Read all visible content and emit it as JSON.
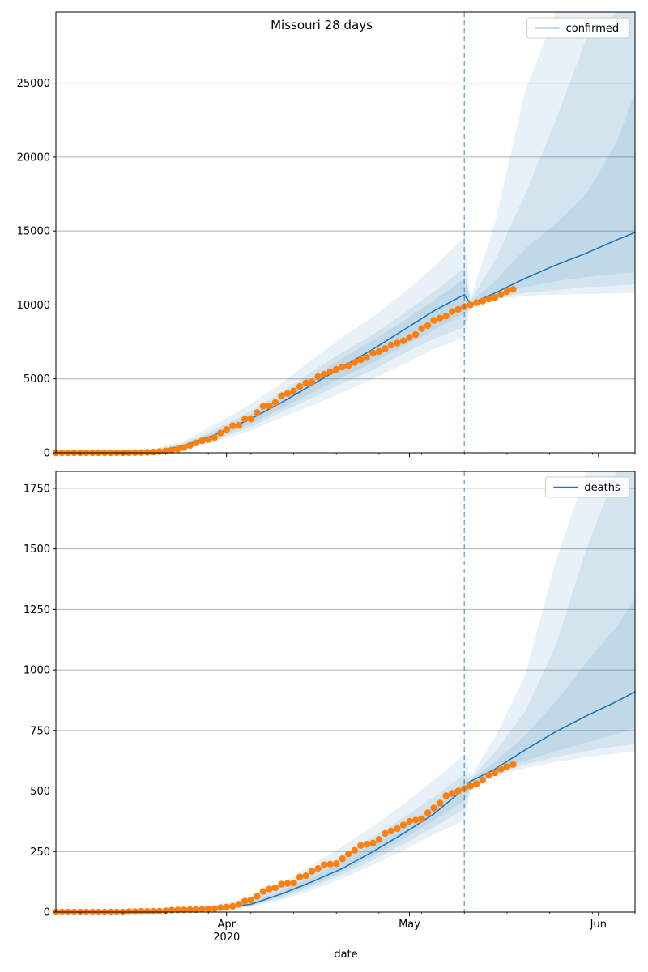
{
  "title": "Missouri 28 days",
  "xlabel": "date",
  "x_ticks": [
    {
      "date": "2020-04-01",
      "label": "Apr",
      "sublabel": "2020"
    },
    {
      "date": "2020-05-01",
      "label": "May",
      "sublabel": ""
    },
    {
      "date": "2020-06-01",
      "label": "Jun",
      "sublabel": ""
    }
  ],
  "x_range": [
    "2020-03-04",
    "2020-06-07"
  ],
  "forecast_start": "2020-05-10",
  "colors": {
    "line": "#1f77b4",
    "band": "#1f77b4",
    "points": "#ff7f0e",
    "grid": "#b0b0b0"
  },
  "chart_data": [
    {
      "type": "line",
      "legend": "confirmed",
      "legend_position": "upper right",
      "grid": "horizontal",
      "ylim": [
        0,
        29800
      ],
      "yticks": [
        0,
        5000,
        10000,
        15000,
        20000,
        25000
      ],
      "fit_line": {
        "x": [
          "2020-03-04",
          "2020-03-15",
          "2020-03-21",
          "2020-03-25",
          "2020-03-30",
          "2020-04-05",
          "2020-04-10",
          "2020-04-15",
          "2020-04-20",
          "2020-04-25",
          "2020-04-30",
          "2020-05-05",
          "2020-05-10",
          "2020-05-11",
          "2020-05-15",
          "2020-05-20",
          "2020-05-25",
          "2020-05-30",
          "2020-06-04",
          "2020-06-07"
        ],
        "y": [
          0,
          20,
          150,
          480,
          1200,
          2300,
          3400,
          4600,
          5800,
          7000,
          8300,
          9600,
          10700,
          10050,
          10800,
          11800,
          12700,
          13500,
          14400,
          14900
        ]
      },
      "bands": [
        {
          "label": "outer",
          "x": [
            "2020-03-04",
            "2020-03-20",
            "2020-03-25",
            "2020-03-30",
            "2020-04-05",
            "2020-04-10",
            "2020-04-15",
            "2020-04-20",
            "2020-04-25",
            "2020-04-30",
            "2020-05-05",
            "2020-05-10",
            "2020-05-11",
            "2020-05-15",
            "2020-05-20",
            "2020-05-25",
            "2020-06-07"
          ],
          "lower": [
            0,
            60,
            260,
            750,
            1500,
            2400,
            3200,
            4100,
            5000,
            6000,
            7000,
            7800,
            10100,
            10400,
            10600,
            10700,
            10800
          ],
          "upper": [
            0,
            250,
            800,
            1900,
            3300,
            4700,
            6300,
            7800,
            9200,
            10800,
            12600,
            14600,
            10400,
            15500,
            24500,
            29800,
            29800
          ]
        },
        {
          "label": "middle",
          "x": [
            "2020-03-04",
            "2020-03-20",
            "2020-03-25",
            "2020-03-30",
            "2020-04-05",
            "2020-04-10",
            "2020-04-15",
            "2020-04-20",
            "2020-04-25",
            "2020-04-30",
            "2020-05-05",
            "2020-05-10",
            "2020-05-11",
            "2020-05-15",
            "2020-05-20",
            "2020-05-25",
            "2020-05-30",
            "2020-06-04",
            "2020-06-07"
          ],
          "lower": [
            0,
            80,
            330,
            880,
            1750,
            2750,
            3700,
            4700,
            5600,
            6700,
            7700,
            8500,
            10100,
            10500,
            10800,
            11000,
            11200,
            11300,
            11400
          ],
          "upper": [
            0,
            190,
            640,
            1550,
            2850,
            4100,
            5500,
            6800,
            8000,
            9400,
            10900,
            12500,
            10300,
            13000,
            17500,
            22500,
            28000,
            29800,
            29800
          ]
        },
        {
          "label": "inner",
          "x": [
            "2020-03-04",
            "2020-03-20",
            "2020-03-25",
            "2020-03-30",
            "2020-04-05",
            "2020-04-10",
            "2020-04-15",
            "2020-04-20",
            "2020-04-25",
            "2020-04-30",
            "2020-05-05",
            "2020-05-10",
            "2020-05-11",
            "2020-05-15",
            "2020-05-20",
            "2020-05-25",
            "2020-05-30",
            "2020-06-04",
            "2020-06-07"
          ],
          "lower": [
            0,
            100,
            380,
            980,
            1950,
            3000,
            4050,
            5100,
            6100,
            7200,
            8300,
            9400,
            10100,
            10700,
            11200,
            11600,
            11900,
            12100,
            12200
          ],
          "upper": [
            0,
            160,
            560,
            1400,
            2600,
            3750,
            5050,
            6400,
            7600,
            8900,
            10300,
            11800,
            10200,
            11600,
            13800,
            15500,
            17500,
            21000,
            24400
          ]
        }
      ],
      "observed": {
        "x": [
          "2020-03-04",
          "2020-03-05",
          "2020-03-06",
          "2020-03-07",
          "2020-03-08",
          "2020-03-09",
          "2020-03-10",
          "2020-03-11",
          "2020-03-12",
          "2020-03-13",
          "2020-03-14",
          "2020-03-15",
          "2020-03-16",
          "2020-03-17",
          "2020-03-18",
          "2020-03-19",
          "2020-03-20",
          "2020-03-21",
          "2020-03-22",
          "2020-03-23",
          "2020-03-24",
          "2020-03-25",
          "2020-03-26",
          "2020-03-27",
          "2020-03-28",
          "2020-03-29",
          "2020-03-30",
          "2020-03-31",
          "2020-04-01",
          "2020-04-02",
          "2020-04-03",
          "2020-04-04",
          "2020-04-05",
          "2020-04-06",
          "2020-04-07",
          "2020-04-08",
          "2020-04-09",
          "2020-04-10",
          "2020-04-11",
          "2020-04-12",
          "2020-04-13",
          "2020-04-14",
          "2020-04-15",
          "2020-04-16",
          "2020-04-17",
          "2020-04-18",
          "2020-04-19",
          "2020-04-20",
          "2020-04-21",
          "2020-04-22",
          "2020-04-23",
          "2020-04-24",
          "2020-04-25",
          "2020-04-26",
          "2020-04-27",
          "2020-04-28",
          "2020-04-29",
          "2020-04-30",
          "2020-05-01",
          "2020-05-02",
          "2020-05-03",
          "2020-05-04",
          "2020-05-05",
          "2020-05-06",
          "2020-05-07",
          "2020-05-08",
          "2020-05-09",
          "2020-05-10",
          "2020-05-11",
          "2020-05-12",
          "2020-05-13",
          "2020-05-14",
          "2020-05-15",
          "2020-05-16",
          "2020-05-17",
          "2020-05-18"
        ],
        "y": [
          0,
          0,
          0,
          0,
          1,
          1,
          1,
          1,
          2,
          2,
          4,
          5,
          8,
          12,
          15,
          28,
          50,
          80,
          120,
          180,
          250,
          350,
          500,
          670,
          810,
          900,
          1030,
          1330,
          1580,
          1830,
          1850,
          2280,
          2300,
          2720,
          3150,
          3170,
          3400,
          3850,
          4010,
          4180,
          4480,
          4730,
          4790,
          5150,
          5310,
          5480,
          5650,
          5800,
          5900,
          6100,
          6290,
          6440,
          6740,
          6850,
          7040,
          7280,
          7430,
          7570,
          7800,
          8000,
          8400,
          8600,
          8950,
          9110,
          9250,
          9550,
          9700,
          9880,
          10000,
          10150,
          10260,
          10400,
          10500,
          10700,
          10900,
          11050
        ]
      }
    },
    {
      "type": "line",
      "legend": "deaths",
      "legend_position": "upper right",
      "grid": "horizontal",
      "ylim": [
        0,
        1820
      ],
      "yticks": [
        0,
        250,
        500,
        750,
        1000,
        1250,
        1500,
        1750
      ],
      "fit_line": {
        "x": [
          "2020-03-04",
          "2020-03-20",
          "2020-03-25",
          "2020-03-30",
          "2020-04-05",
          "2020-04-10",
          "2020-04-15",
          "2020-04-20",
          "2020-04-25",
          "2020-04-30",
          "2020-05-05",
          "2020-05-10",
          "2020-05-11",
          "2020-05-15",
          "2020-05-20",
          "2020-05-25",
          "2020-05-30",
          "2020-06-04",
          "2020-06-07"
        ],
        "y": [
          0,
          3,
          8,
          15,
          32,
          75,
          125,
          180,
          250,
          325,
          405,
          510,
          540,
          590,
          670,
          745,
          810,
          870,
          910
        ]
      },
      "bands": [
        {
          "label": "outer",
          "x": [
            "2020-03-04",
            "2020-03-20",
            "2020-03-25",
            "2020-03-30",
            "2020-04-05",
            "2020-04-10",
            "2020-04-15",
            "2020-04-20",
            "2020-04-25",
            "2020-04-30",
            "2020-05-05",
            "2020-05-10",
            "2020-05-11",
            "2020-05-15",
            "2020-05-20",
            "2020-05-25",
            "2020-05-30",
            "2020-06-04",
            "2020-06-07"
          ],
          "lower": [
            0,
            1,
            4,
            9,
            22,
            50,
            90,
            140,
            195,
            255,
            320,
            380,
            505,
            560,
            595,
            620,
            640,
            655,
            665
          ],
          "upper": [
            0,
            6,
            14,
            28,
            65,
            120,
            195,
            270,
            355,
            445,
            545,
            650,
            560,
            720,
            980,
            1450,
            1820,
            1820,
            1820
          ]
        },
        {
          "label": "middle",
          "x": [
            "2020-03-04",
            "2020-03-20",
            "2020-03-25",
            "2020-03-30",
            "2020-04-05",
            "2020-04-10",
            "2020-04-15",
            "2020-04-20",
            "2020-04-25",
            "2020-04-30",
            "2020-05-05",
            "2020-05-10",
            "2020-05-11",
            "2020-05-15",
            "2020-05-20",
            "2020-05-25",
            "2020-05-30",
            "2020-06-04",
            "2020-06-07"
          ],
          "lower": [
            0,
            2,
            5,
            11,
            25,
            58,
            102,
            155,
            215,
            280,
            350,
            425,
            510,
            570,
            610,
            640,
            665,
            685,
            695
          ],
          "upper": [
            0,
            5,
            12,
            22,
            50,
            100,
            165,
            235,
            310,
            390,
            475,
            570,
            550,
            660,
            830,
            1100,
            1500,
            1820,
            1820
          ]
        },
        {
          "label": "inner",
          "x": [
            "2020-03-04",
            "2020-03-20",
            "2020-03-25",
            "2020-03-30",
            "2020-04-05",
            "2020-04-10",
            "2020-04-15",
            "2020-04-20",
            "2020-04-25",
            "2020-04-30",
            "2020-05-05",
            "2020-05-10",
            "2020-05-11",
            "2020-05-15",
            "2020-05-20",
            "2020-05-25",
            "2020-05-30",
            "2020-06-04",
            "2020-06-07"
          ],
          "lower": [
            0,
            2,
            6,
            13,
            28,
            65,
            112,
            168,
            232,
            302,
            378,
            460,
            520,
            580,
            625,
            665,
            700,
            735,
            760
          ],
          "upper": [
            0,
            4,
            10,
            18,
            40,
            88,
            145,
            208,
            280,
            355,
            435,
            540,
            545,
            620,
            730,
            870,
            1030,
            1180,
            1300
          ]
        }
      ],
      "observed": {
        "x": [
          "2020-03-04",
          "2020-03-05",
          "2020-03-06",
          "2020-03-07",
          "2020-03-08",
          "2020-03-09",
          "2020-03-10",
          "2020-03-11",
          "2020-03-12",
          "2020-03-13",
          "2020-03-14",
          "2020-03-15",
          "2020-03-16",
          "2020-03-17",
          "2020-03-18",
          "2020-03-19",
          "2020-03-20",
          "2020-03-21",
          "2020-03-22",
          "2020-03-23",
          "2020-03-24",
          "2020-03-25",
          "2020-03-26",
          "2020-03-27",
          "2020-03-28",
          "2020-03-29",
          "2020-03-30",
          "2020-03-31",
          "2020-04-01",
          "2020-04-02",
          "2020-04-03",
          "2020-04-04",
          "2020-04-05",
          "2020-04-06",
          "2020-04-07",
          "2020-04-08",
          "2020-04-09",
          "2020-04-10",
          "2020-04-11",
          "2020-04-12",
          "2020-04-13",
          "2020-04-14",
          "2020-04-15",
          "2020-04-16",
          "2020-04-17",
          "2020-04-18",
          "2020-04-19",
          "2020-04-20",
          "2020-04-21",
          "2020-04-22",
          "2020-04-23",
          "2020-04-24",
          "2020-04-25",
          "2020-04-26",
          "2020-04-27",
          "2020-04-28",
          "2020-04-29",
          "2020-04-30",
          "2020-05-01",
          "2020-05-02",
          "2020-05-03",
          "2020-05-04",
          "2020-05-05",
          "2020-05-06",
          "2020-05-07",
          "2020-05-08",
          "2020-05-09",
          "2020-05-10",
          "2020-05-11",
          "2020-05-12",
          "2020-05-13",
          "2020-05-14",
          "2020-05-15",
          "2020-05-16",
          "2020-05-17",
          "2020-05-18"
        ],
        "y": [
          0,
          0,
          0,
          0,
          0,
          0,
          0,
          0,
          0,
          0,
          0,
          0,
          2,
          2,
          3,
          3,
          3,
          4,
          5,
          8,
          9,
          9,
          10,
          10,
          12,
          13,
          14,
          18,
          20,
          24,
          32,
          45,
          50,
          65,
          85,
          95,
          100,
          115,
          118,
          120,
          145,
          150,
          168,
          180,
          195,
          198,
          200,
          220,
          240,
          255,
          275,
          280,
          285,
          300,
          325,
          335,
          345,
          360,
          375,
          380,
          385,
          410,
          430,
          450,
          480,
          490,
          500,
          510,
          520,
          530,
          545,
          565,
          575,
          590,
          600,
          610
        ]
      }
    }
  ]
}
